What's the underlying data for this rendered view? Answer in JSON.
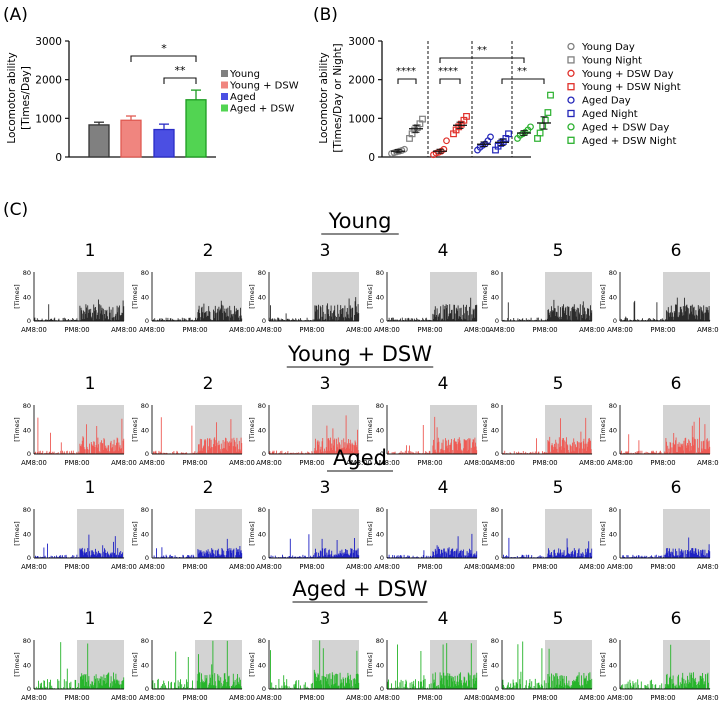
{
  "panel_a": {
    "label": "(A)",
    "ylabel_1": "Locomotor ability",
    "ylabel_2": "[Times/Day]",
    "yticks": [
      "0",
      "1000",
      "2000",
      "3000"
    ],
    "sig_1": "*",
    "sig_2": "**"
  },
  "panel_b": {
    "label": "(B)",
    "ylabel_1": "Locomotor ability",
    "ylabel_2": "[Times/Day or Night]",
    "yticks": [
      "0",
      "1000",
      "2000",
      "3000"
    ],
    "sig_1": "****",
    "sig_2": "****",
    "sig_3": "**",
    "sig_4": "**"
  },
  "panel_c": {
    "label": "(C)",
    "ylabel": "[Times]",
    "ytick_max": "80",
    "ytick_mid": "40",
    "ytick_min": "0",
    "x_start": "AM8:00",
    "x_mid": "PM8:00",
    "x_end": "AM8:00",
    "animal_numbers": [
      "1",
      "2",
      "3",
      "4",
      "5",
      "6"
    ]
  },
  "colors": {
    "young": "#808080",
    "young_dsw": "#f0857f",
    "aged": "#4b4fe3",
    "aged_dsw": "#52d452",
    "young_trace": "#2b2b2b",
    "young_dsw_trace": "#ee5b55",
    "aged_trace": "#1f22c4",
    "aged_dsw_trace": "#27b42b",
    "night_shade": "#d3d3d3"
  },
  "chart_data": [
    {
      "type": "bar",
      "title": "(A)",
      "ylabel": "Locomotor ability [Times/Day]",
      "ylim": [
        0,
        3000
      ],
      "categories": [
        "Young",
        "Young + DSW",
        "Aged",
        "Aged + DSW"
      ],
      "values": [
        830,
        950,
        710,
        1480
      ],
      "errors": [
        70,
        110,
        140,
        250
      ],
      "legend": [
        "Young",
        "Young + DSW",
        "Aged",
        "Aged + DSW"
      ],
      "annotations": [
        {
          "between": [
            "Young + DSW",
            "Aged + DSW"
          ],
          "text": "*"
        },
        {
          "between": [
            "Aged",
            "Aged + DSW"
          ],
          "text": "**"
        }
      ]
    },
    {
      "type": "scatter",
      "title": "(B)",
      "ylabel": "Locomotor ability [Times/Day or Night]",
      "ylim": [
        0,
        3000
      ],
      "series": [
        {
          "name": "Young Day",
          "mean": 150,
          "sem": 40,
          "values": [
            90,
            110,
            130,
            150,
            170,
            200
          ]
        },
        {
          "name": "Young Night",
          "mean": 730,
          "sem": 90,
          "values": [
            480,
            600,
            700,
            760,
            860,
            980
          ]
        },
        {
          "name": "Young + DSW Day",
          "mean": 150,
          "sem": 50,
          "values": [
            60,
            100,
            120,
            150,
            200,
            420
          ]
        },
        {
          "name": "Young + DSW Night",
          "mean": 820,
          "sem": 80,
          "values": [
            600,
            700,
            780,
            850,
            950,
            1050
          ]
        },
        {
          "name": "Aged Day",
          "mean": 330,
          "sem": 60,
          "values": [
            180,
            250,
            300,
            340,
            420,
            520
          ]
        },
        {
          "name": "Aged Night",
          "mean": 380,
          "sem": 80,
          "values": [
            180,
            280,
            350,
            400,
            480,
            600
          ]
        },
        {
          "name": "Aged + DSW Day",
          "mean": 620,
          "sem": 60,
          "values": [
            480,
            560,
            600,
            640,
            700,
            780
          ]
        },
        {
          "name": "Aged + DSW Night",
          "mean": 880,
          "sem": 160,
          "values": [
            480,
            620,
            800,
            950,
            1150,
            1600
          ]
        }
      ],
      "legend": [
        "Young Day",
        "Young Night",
        "Young + DSW Day",
        "Young + DSW Night",
        "Aged Day",
        "Aged Night",
        "Aged + DSW Day",
        "Aged + DSW Night"
      ],
      "annotations": [
        {
          "between": [
            "Young Day",
            "Young Night"
          ],
          "text": "****"
        },
        {
          "between": [
            "Young + DSW Day",
            "Young + DSW Night"
          ],
          "text": "****"
        },
        {
          "between": [
            "Young + DSW Night",
            "Aged + DSW Night"
          ],
          "text": "**"
        },
        {
          "between": [
            "Aged Night",
            "Aged + DSW Night"
          ],
          "text": "**"
        }
      ]
    },
    {
      "type": "bar",
      "title": "(C)",
      "ylabel": "[Times]",
      "ylim": [
        0,
        80
      ],
      "x_range": [
        "AM8:00",
        "PM8:00",
        "AM8:00"
      ],
      "night_shading": "PM8:00 to AM8:00",
      "groups": [
        {
          "title": "Young",
          "animals": [
            "1",
            "2",
            "3",
            "4",
            "5",
            "6"
          ],
          "typical_day_level": 5,
          "typical_night_level": 25,
          "peak": 40
        },
        {
          "title": "Young + DSW",
          "animals": [
            "1",
            "2",
            "3",
            "4",
            "5",
            "6"
          ],
          "typical_day_level": 5,
          "typical_night_level": 25,
          "peak": 65
        },
        {
          "title": "Aged",
          "animals": [
            "1",
            "2",
            "3",
            "4",
            "5",
            "6"
          ],
          "typical_day_level": 5,
          "typical_night_level": 15,
          "peak": 40
        },
        {
          "title": "Aged + DSW",
          "animals": [
            "1",
            "2",
            "3",
            "4",
            "5",
            "6"
          ],
          "typical_day_level": 15,
          "typical_night_level": 25,
          "peak": 80
        }
      ]
    }
  ]
}
